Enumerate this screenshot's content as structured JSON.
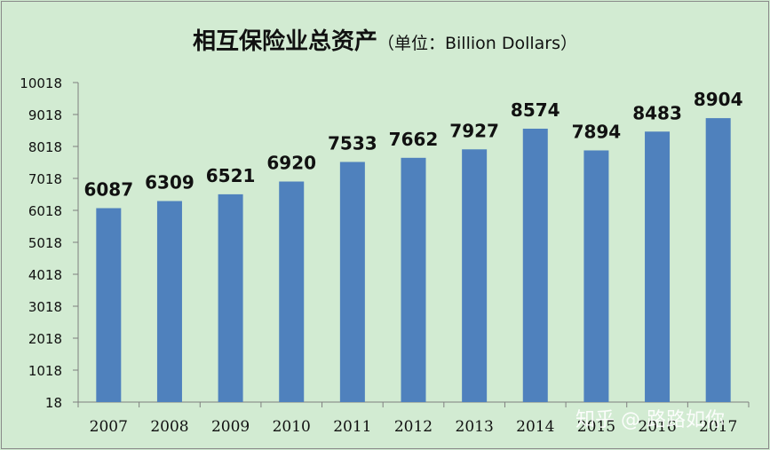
{
  "title": "相互保险业总资产",
  "unit_label": "（单位：Billion Dollars）",
  "watermark": "知乎 @ 路路如你",
  "colors": {
    "bar": "#4f81bd",
    "background": "#d2ebd2",
    "axis": "#7f7f7f"
  },
  "chart_data": {
    "type": "bar",
    "title": "相互保险业总资产",
    "subtitle": "（单位：Billion Dollars）",
    "categories": [
      "2007",
      "2008",
      "2009",
      "2010",
      "2011",
      "2012",
      "2013",
      "2014",
      "2015",
      "2016",
      "2017"
    ],
    "values": [
      6087,
      6309,
      6521,
      6920,
      7533,
      7662,
      7927,
      8574,
      7894,
      8483,
      8904
    ],
    "ylim": [
      18,
      10018
    ],
    "yticks": [
      18,
      1018,
      2018,
      3018,
      4018,
      5018,
      6018,
      7018,
      8018,
      9018,
      10018
    ],
    "grid": false,
    "xlabel": "",
    "ylabel": ""
  }
}
